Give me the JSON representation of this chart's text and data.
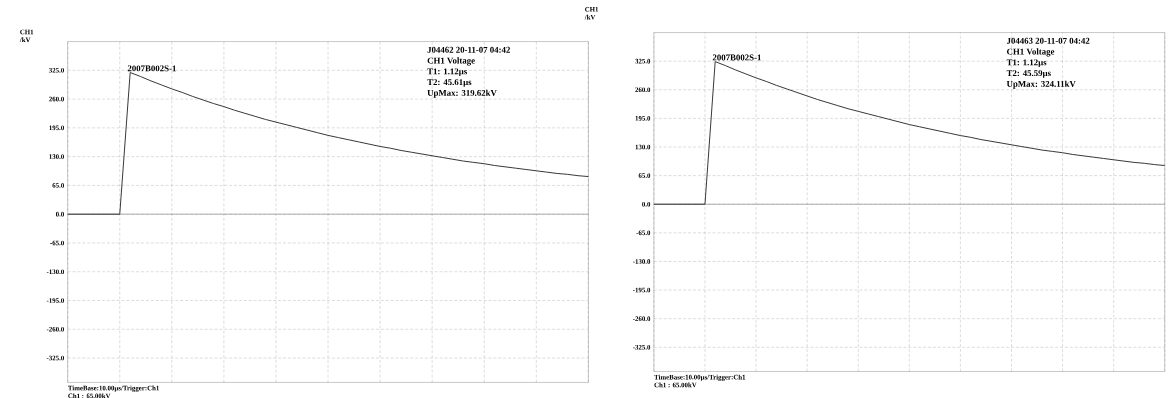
{
  "chart_data": [
    {
      "type": "line",
      "ylabel": "CH1 /kV",
      "categories": [
        null,
        null,
        null,
        null,
        null,
        null,
        null,
        null,
        null,
        null,
        null,
        null,
        null,
        null,
        null,
        null,
        null,
        null,
        null,
        null,
        null,
        null,
        null,
        null,
        null,
        null,
        null,
        null,
        null,
        null,
        null,
        null,
        null,
        null,
        null,
        null,
        null,
        null,
        null,
        null,
        null,
        null,
        null,
        null,
        null,
        null,
        null,
        null,
        null,
        null,
        null
      ],
      "series": [
        {
          "color": "#333333",
          "values": [
            0,
            0,
            0,
            0,
            0,
            0,
            320,
            311,
            301,
            292,
            283,
            275,
            266,
            258,
            250,
            243,
            235,
            228,
            221,
            214,
            208,
            202,
            196,
            190,
            184,
            178,
            173,
            168,
            163,
            158,
            153,
            149,
            144,
            140,
            136,
            132,
            128,
            124,
            120,
            117,
            114,
            110,
            107,
            104,
            101,
            98,
            95,
            92,
            90,
            87,
            85
          ]
        }
      ],
      "ylim": [
        -380,
        390
      ],
      "yticks": [
        {
          "value": 325,
          "label": "325.0"
        },
        {
          "value": 260,
          "label": "260.0"
        },
        {
          "value": 195,
          "label": "195.0"
        },
        {
          "value": 130,
          "label": "130.0"
        },
        {
          "value": 65,
          "label": "65.0"
        },
        {
          "value": 0,
          "label": "0.0"
        },
        {
          "value": -65,
          "label": "-65.0"
        },
        {
          "value": -130,
          "label": "-130.0"
        },
        {
          "value": -195,
          "label": "-195.0"
        },
        {
          "value": -260,
          "label": "-260.0"
        },
        {
          "value": -325,
          "label": "-325.0"
        }
      ],
      "grid": true,
      "tick_labels": "y",
      "ref_lines": [
        {
          "axis": "y",
          "value": 0,
          "color": "#999999"
        }
      ],
      "annotations": [
        "2007B002S-1",
        "J04462  20-11-07 04:42",
        "CH1 Voltage",
        "T1: 1.12µs",
        "T2: 45.61µs",
        "UpMax: 319.62kV",
        "TimeBase:10.00µs/Trigger:Ch1",
        "Ch1 :  65.00kV"
      ]
    },
    {
      "type": "line",
      "ylabel": "CH1 /kV",
      "categories": [
        null,
        null,
        null,
        null,
        null,
        null,
        null,
        null,
        null,
        null,
        null,
        null,
        null,
        null,
        null,
        null,
        null,
        null,
        null,
        null,
        null,
        null,
        null,
        null,
        null,
        null,
        null,
        null,
        null,
        null,
        null,
        null,
        null,
        null,
        null,
        null,
        null,
        null,
        null,
        null,
        null,
        null,
        null,
        null,
        null,
        null,
        null,
        null,
        null,
        null,
        null
      ],
      "series": [
        {
          "color": "#333333",
          "values": [
            0,
            0,
            0,
            0,
            0,
            0,
            324,
            315,
            305,
            296,
            287,
            279,
            270,
            262,
            254,
            246,
            238,
            231,
            224,
            217,
            211,
            205,
            199,
            193,
            187,
            181,
            176,
            171,
            166,
            161,
            156,
            152,
            147,
            143,
            139,
            135,
            131,
            127,
            123,
            120,
            117,
            113,
            110,
            107,
            104,
            101,
            98,
            95,
            93,
            90,
            88
          ]
        }
      ],
      "ylim": [
        -380,
        390
      ],
      "yticks": [
        {
          "value": 325,
          "label": "325.0"
        },
        {
          "value": 260,
          "label": "260.0"
        },
        {
          "value": 195,
          "label": "195.0"
        },
        {
          "value": 130,
          "label": "130.0"
        },
        {
          "value": 65,
          "label": "65.0"
        },
        {
          "value": 0,
          "label": "0.0"
        },
        {
          "value": -65,
          "label": "-65.0"
        },
        {
          "value": -130,
          "label": "-130.0"
        },
        {
          "value": -195,
          "label": "-195.0"
        },
        {
          "value": -260,
          "label": "-260.0"
        },
        {
          "value": -325,
          "label": "-325.0"
        }
      ],
      "grid": true,
      "tick_labels": "y",
      "ref_lines": [
        {
          "axis": "y",
          "value": 0,
          "color": "#999999"
        }
      ],
      "annotations": [
        "2007B002S-1",
        "J04463  20-11-07 04:42",
        "CH1 Voltage",
        "T1: 1.12µs",
        "T2: 45.59µs",
        "UpMax: 324.11kV",
        "TimeBase:10.00µs/Trigger:Ch1",
        "Ch1 :  65.00kV"
      ]
    }
  ]
}
